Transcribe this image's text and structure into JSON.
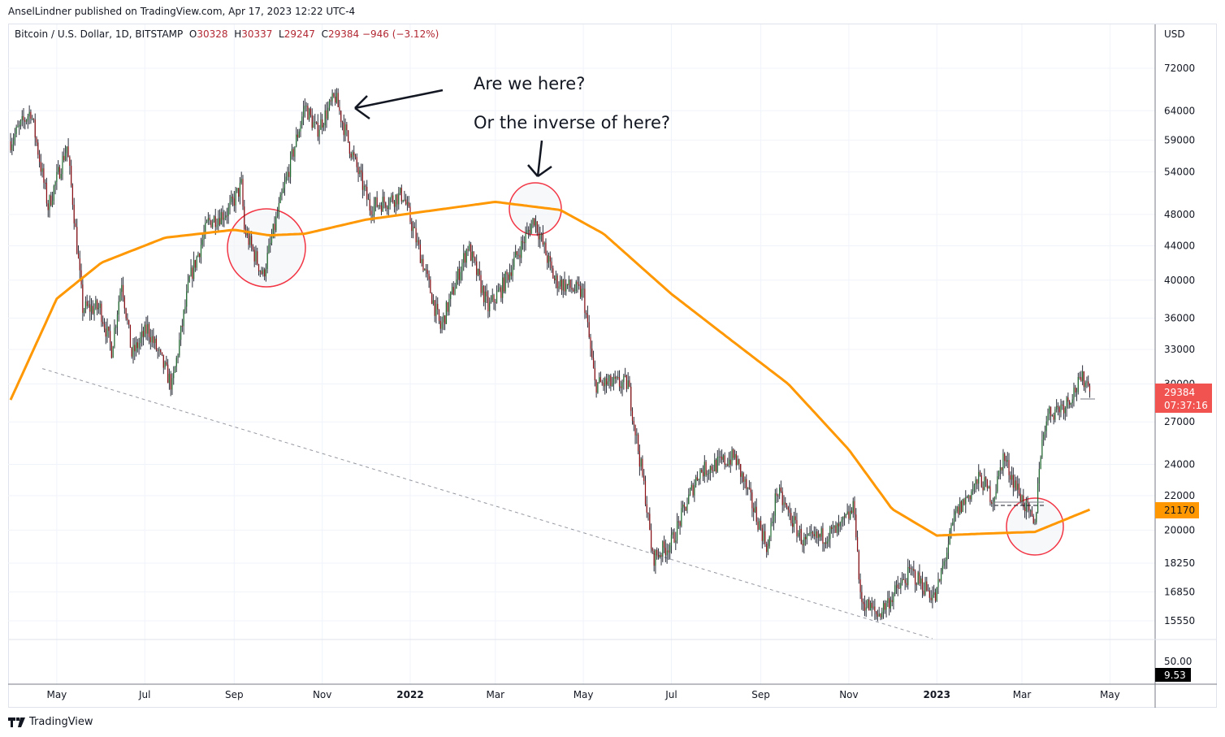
{
  "header": {
    "published": "AnselLindner published on TradingView.com, Apr 17, 2023 12:22 UTC-4"
  },
  "legend": {
    "symbol": "Bitcoin / U.S. Dollar, 1D, BITSTAMP",
    "open_label": "O",
    "open": "30328",
    "high_label": "H",
    "high": "30337",
    "low_label": "L",
    "low": "29247",
    "close_label": "C",
    "close": "29384",
    "change": "−946 (−3.12%)"
  },
  "footer": {
    "brand": "TradingView"
  },
  "annotations": {
    "text1": "Are we here?",
    "text2": "Or the inverse of here?"
  },
  "chart_data": {
    "type": "candlestick",
    "scale": "log",
    "currency": "USD",
    "ylim": [
      15000,
      76000
    ],
    "y_ticks": [
      "72000",
      "64000",
      "59000",
      "54000",
      "48000",
      "44000",
      "40000",
      "36000",
      "33000",
      "30000",
      "27000",
      "24000",
      "22000",
      "20000",
      "18250",
      "16850",
      "15550"
    ],
    "x_ticks": [
      {
        "label": "May",
        "date": "2021-05-01"
      },
      {
        "label": "Jul",
        "date": "2021-07-01"
      },
      {
        "label": "Sep",
        "date": "2021-09-01"
      },
      {
        "label": "Nov",
        "date": "2021-11-01"
      },
      {
        "label": "2022",
        "date": "2022-01-01",
        "bold": true
      },
      {
        "label": "Mar",
        "date": "2022-03-01"
      },
      {
        "label": "May",
        "date": "2022-05-01"
      },
      {
        "label": "Jul",
        "date": "2022-07-01"
      },
      {
        "label": "Sep",
        "date": "2022-09-01"
      },
      {
        "label": "Nov",
        "date": "2022-11-01"
      },
      {
        "label": "2023",
        "date": "2023-01-01",
        "bold": true
      },
      {
        "label": "Mar",
        "date": "2023-03-01"
      },
      {
        "label": "May",
        "date": "2023-05-01"
      }
    ],
    "price_close_anchors": [
      [
        "2021-03-30",
        58800
      ],
      [
        "2021-04-13",
        64000
      ],
      [
        "2021-04-25",
        49000
      ],
      [
        "2021-05-08",
        58000
      ],
      [
        "2021-05-12",
        50000
      ],
      [
        "2021-05-19",
        37000
      ],
      [
        "2021-05-31",
        37000
      ],
      [
        "2021-06-08",
        33000
      ],
      [
        "2021-06-15",
        40000
      ],
      [
        "2021-06-22",
        32500
      ],
      [
        "2021-07-03",
        35000
      ],
      [
        "2021-07-20",
        29800
      ],
      [
        "2021-08-01",
        40000
      ],
      [
        "2021-08-14",
        47000
      ],
      [
        "2021-08-28",
        48500
      ],
      [
        "2021-09-06",
        52000
      ],
      [
        "2021-09-08",
        46000
      ],
      [
        "2021-09-21",
        40500
      ],
      [
        "2021-10-01",
        48000
      ],
      [
        "2021-10-20",
        65000
      ],
      [
        "2021-10-28",
        60500
      ],
      [
        "2021-11-10",
        66500
      ],
      [
        "2021-11-20",
        58000
      ],
      [
        "2021-12-04",
        49000
      ],
      [
        "2021-12-27",
        50700
      ],
      [
        "2022-01-10",
        41800
      ],
      [
        "2022-01-22",
        35000
      ],
      [
        "2022-02-10",
        44000
      ],
      [
        "2022-02-24",
        37000
      ],
      [
        "2022-03-05",
        39000
      ],
      [
        "2022-03-28",
        47500
      ],
      [
        "2022-04-11",
        40000
      ],
      [
        "2022-05-01",
        38500
      ],
      [
        "2022-05-09",
        30000
      ],
      [
        "2022-06-01",
        30000
      ],
      [
        "2022-06-13",
        22000
      ],
      [
        "2022-06-18",
        18500
      ],
      [
        "2022-07-01",
        19300
      ],
      [
        "2022-07-20",
        23500
      ],
      [
        "2022-08-14",
        24500
      ],
      [
        "2022-09-06",
        19000
      ],
      [
        "2022-09-12",
        22300
      ],
      [
        "2022-10-01",
        19300
      ],
      [
        "2022-10-25",
        20000
      ],
      [
        "2022-11-05",
        21300
      ],
      [
        "2022-11-09",
        16500
      ],
      [
        "2022-11-21",
        15800
      ],
      [
        "2022-12-14",
        17800
      ],
      [
        "2022-12-31",
        16550
      ],
      [
        "2023-01-14",
        20900
      ],
      [
        "2023-01-31",
        23100
      ],
      [
        "2023-02-09",
        21800
      ],
      [
        "2023-02-16",
        24500
      ],
      [
        "2023-03-09",
        20300
      ],
      [
        "2023-03-10",
        20100
      ],
      [
        "2023-03-13",
        24100
      ],
      [
        "2023-03-18",
        27500
      ],
      [
        "2023-03-31",
        28400
      ],
      [
        "2023-04-11",
        30200
      ],
      [
        "2023-04-14",
        30500
      ],
      [
        "2023-04-17",
        29384
      ]
    ],
    "moving_average": {
      "color": "#ff9800",
      "last": "21170",
      "anchors": [
        [
          "2021-03-30",
          28700
        ],
        [
          "2021-05-01",
          38000
        ],
        [
          "2021-06-01",
          42000
        ],
        [
          "2021-07-15",
          45000
        ],
        [
          "2021-09-01",
          46000
        ],
        [
          "2021-09-25",
          45300
        ],
        [
          "2021-10-20",
          45500
        ],
        [
          "2021-12-01",
          47300
        ],
        [
          "2022-01-15",
          48500
        ],
        [
          "2022-03-01",
          49700
        ],
        [
          "2022-04-15",
          48600
        ],
        [
          "2022-05-15",
          45500
        ],
        [
          "2022-07-01",
          38500
        ],
        [
          "2022-08-15",
          33500
        ],
        [
          "2022-09-20",
          30000
        ],
        [
          "2022-11-01",
          25000
        ],
        [
          "2022-12-01",
          21200
        ],
        [
          "2023-01-01",
          19700
        ],
        [
          "2023-02-01",
          19800
        ],
        [
          "2023-03-10",
          19900
        ],
        [
          "2023-04-17",
          21170
        ]
      ]
    },
    "last_price": {
      "value": "29384",
      "countdown": "07:37:16",
      "color": "#f05350"
    },
    "trendline": {
      "from": [
        "2021-04-21",
        31300
      ],
      "to": [
        "2022-12-29",
        14800
      ],
      "style": "dashed"
    },
    "indicator_pane": {
      "ticks": [
        "50.00"
      ],
      "last": "9.53"
    },
    "up_color": "#1e6b2e",
    "down_color": "#8b0f14"
  }
}
